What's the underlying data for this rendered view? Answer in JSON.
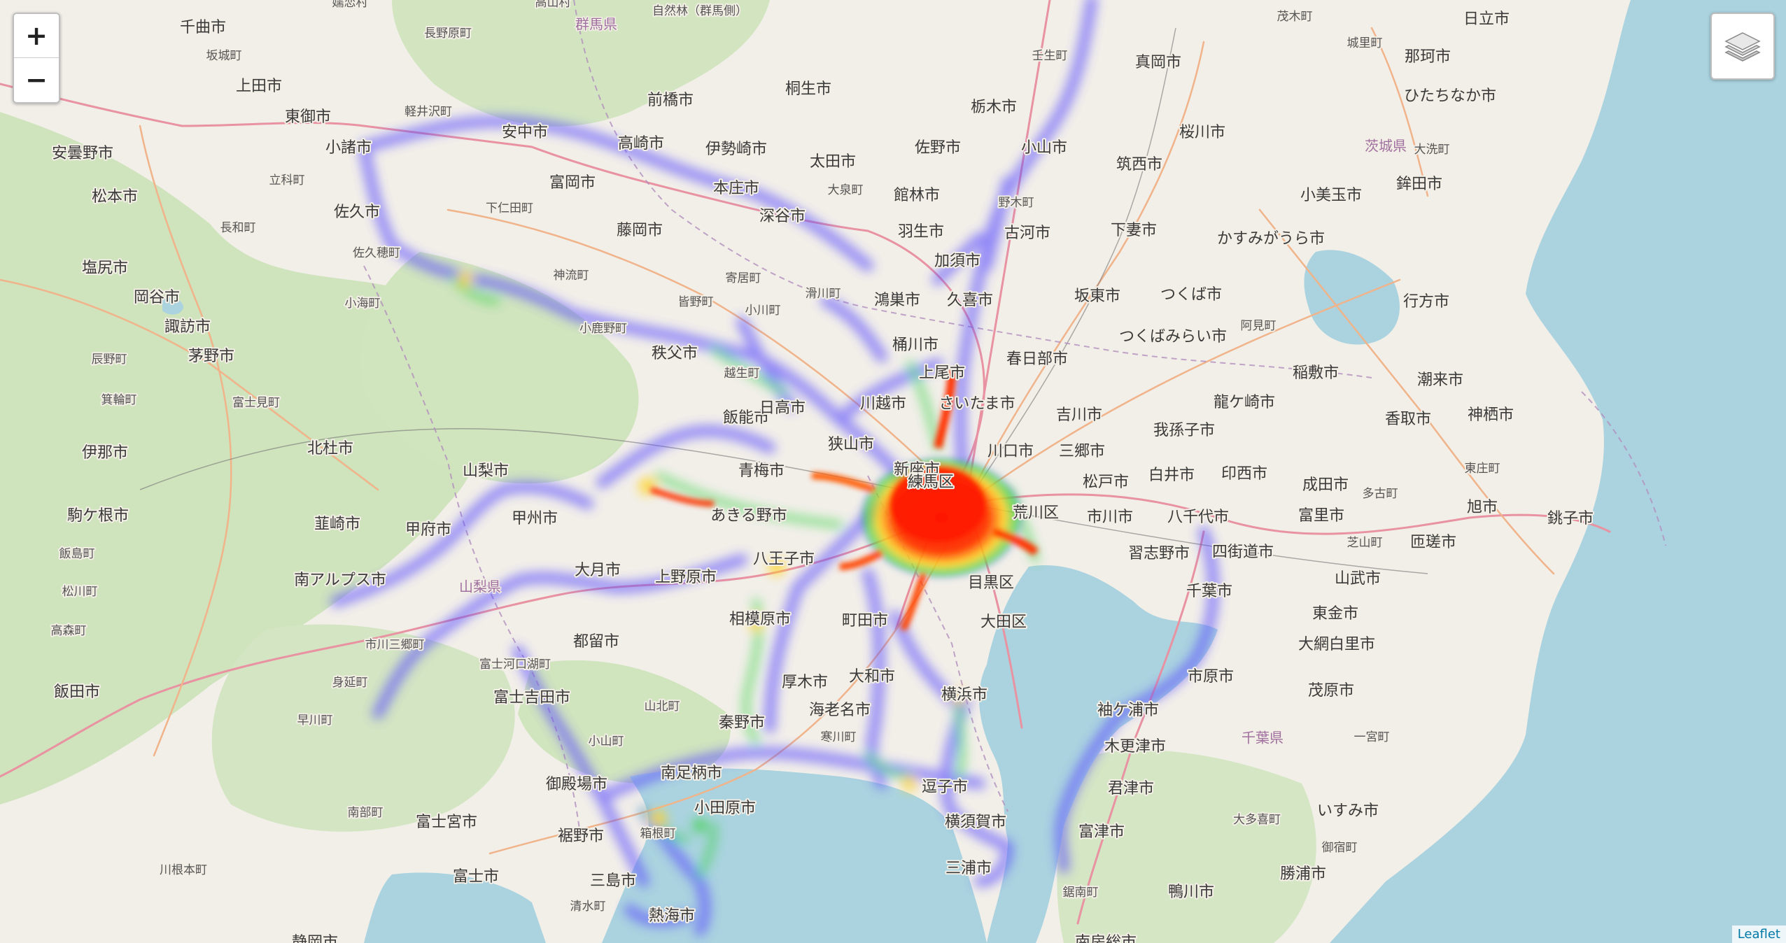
{
  "controls": {
    "zoom_in": "+",
    "zoom_out": "−",
    "layers_icon": "layers-icon"
  },
  "attribution": "Leaflet",
  "colors": {
    "sea": "#aad3df",
    "land": "#f2efe9",
    "forest": "#d6e6c3",
    "heat_low": "#5a4cff",
    "heat_mid": "#3cd24a",
    "heat_high": "#ffd21e",
    "heat_max": "#ff1a00"
  },
  "places": [
    "千曲市",
    "坂城町",
    "上田市",
    "東御市",
    "軽井沢町",
    "安中市",
    "高崎市",
    "前橋市",
    "桐生市",
    "栃木市",
    "壬生町",
    "真岡市",
    "茂木町",
    "日立市",
    "城里町",
    "那珂市",
    "ひたちなか市",
    "安曇野市",
    "松本市",
    "小諸市",
    "佐久市",
    "立科町",
    "下仁田町",
    "富岡市",
    "伊勢崎市",
    "太田市",
    "佐野市",
    "小山市",
    "筑西市",
    "桜川市",
    "茨城県",
    "大洗町",
    "小美玉市",
    "鉾田市",
    "塩尻市",
    "長和町",
    "佐久穂町",
    "藤岡市",
    "本庄市",
    "深谷市",
    "館林市",
    "大泉町",
    "野木町",
    "古河市",
    "下妻市",
    "かすみがうら市",
    "行方市",
    "岡谷市",
    "諏訪市",
    "茅野市",
    "小海町",
    "神流町",
    "皆野町",
    "寄居町",
    "滑川町",
    "鴻巣市",
    "加須市",
    "久喜市",
    "羽生市",
    "坂東市",
    "つくば市",
    "阿見町",
    "つくばみらい市",
    "稲敷市",
    "潮来市",
    "神栖市",
    "辰野町",
    "箕輪町",
    "富士見町",
    "小鹿野町",
    "秩父市",
    "小川町",
    "越生町",
    "桶川市",
    "上尾市",
    "春日部市",
    "吉川市",
    "龍ケ崎市",
    "香取市",
    "伊那市",
    "北杜市",
    "山梨市",
    "飯能市",
    "日高市",
    "川越市",
    "さいたま市",
    "川口市",
    "三郷市",
    "我孫子市",
    "東庄町",
    "銚子市",
    "駒ケ根市",
    "韮崎市",
    "甲府市",
    "甲州市",
    "青梅市",
    "狭山市",
    "新座市",
    "荒川区",
    "松戸市",
    "白井市",
    "印西市",
    "成田市",
    "多古町",
    "旭市",
    "飯島町",
    "南アルプス市",
    "大月市",
    "あきる野市",
    "八王子市",
    "練馬区",
    "市川市",
    "八千代市",
    "習志野市",
    "四街道市",
    "富里市",
    "芝山町",
    "匝瑳市",
    "松川町",
    "山梨県",
    "上野原市",
    "相模原市",
    "町田市",
    "目黒区",
    "大田区",
    "千葉市",
    "山武市",
    "東金市",
    "大網白里市",
    "高森町",
    "市川三郷町",
    "富士河口湖町",
    "都留市",
    "厚木市",
    "大和市",
    "横浜市",
    "市原市",
    "茂原市",
    "袖ケ浦市",
    "木更津市",
    "千葉県",
    "一宮町",
    "飯田市",
    "身延町",
    "富士吉田市",
    "山北町",
    "秦野市",
    "海老名市",
    "寒川町",
    "君津市",
    "いすみ市",
    "早川町",
    "小山町",
    "御殿場市",
    "南足柄市",
    "小田原市",
    "逗子市",
    "横須賀市",
    "富津市",
    "大多喜町",
    "御宿町",
    "南部町",
    "富士宮市",
    "裾野市",
    "箱根町",
    "三浦市",
    "勝浦市",
    "鴨川市",
    "鋸南町",
    "川根本町",
    "富士市",
    "三島市",
    "清水町",
    "熱海市",
    "静岡市",
    "南房総市",
    "群馬県",
    "自然林（群馬側）",
    "長野原町",
    "高山村",
    "嬬恋村"
  ]
}
